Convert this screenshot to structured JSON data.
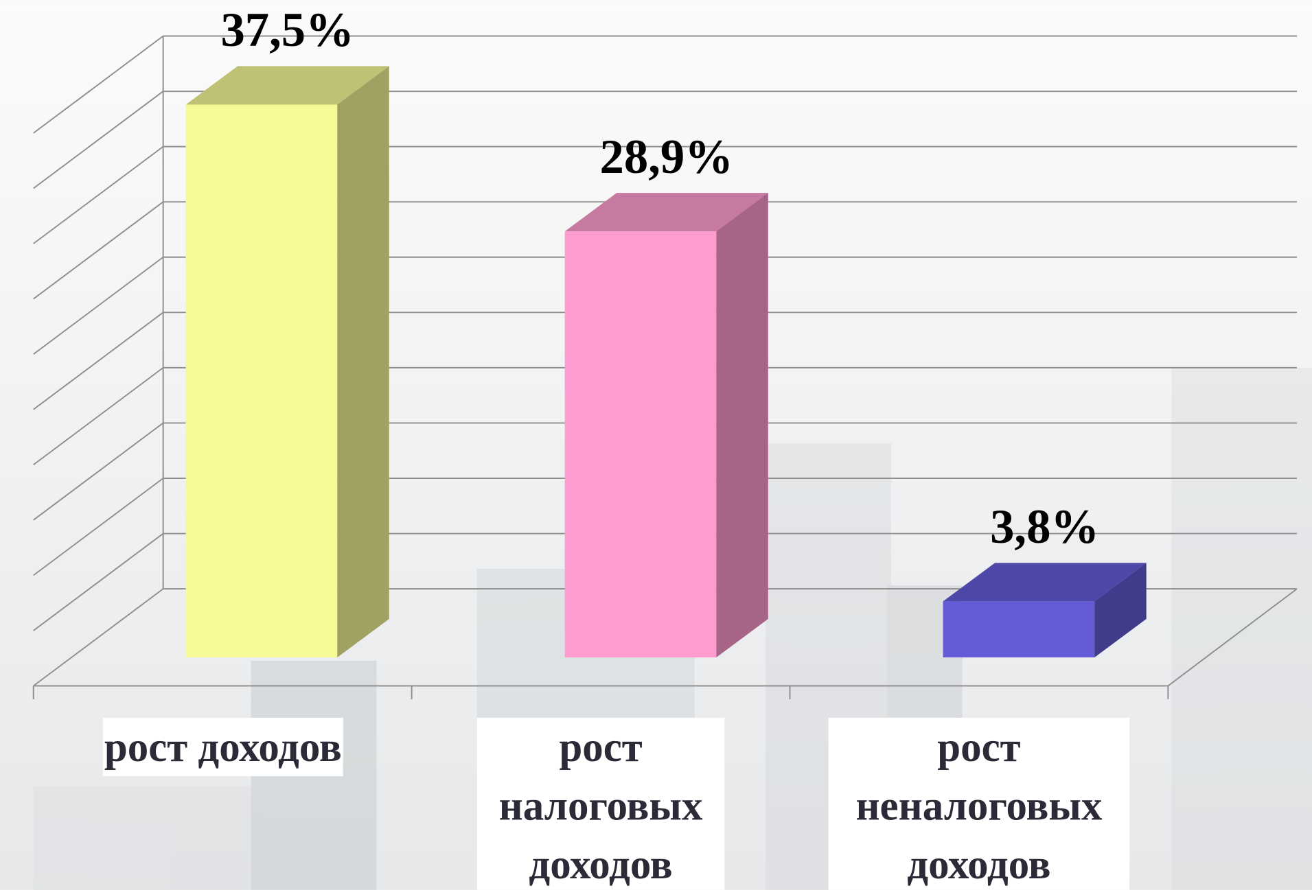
{
  "chart_data": {
    "type": "bar3d",
    "categories": [
      "рост доходов",
      "рост налоговых доходов",
      "рост неналоговых доходов"
    ],
    "values": [
      37.5,
      28.9,
      3.8
    ],
    "value_labels": [
      "37,5%",
      "28,9%",
      "3,8%"
    ],
    "colors": [
      "#f5f996",
      "#ff9ccf",
      "#635cd6"
    ]
  }
}
